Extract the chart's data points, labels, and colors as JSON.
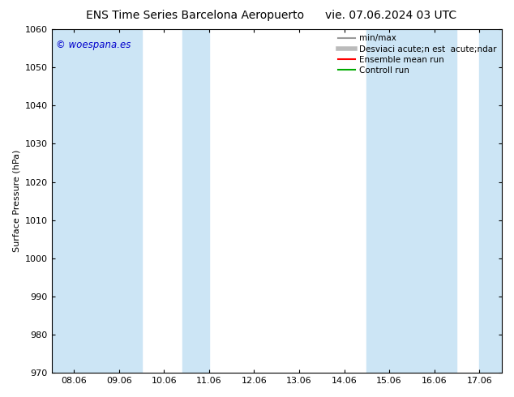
{
  "title_left": "ENS Time Series Barcelona Aeropuerto",
  "title_right": "vie. 07.06.2024 03 UTC",
  "ylabel": "Surface Pressure (hPa)",
  "ylim": [
    970,
    1060
  ],
  "yticks": [
    970,
    980,
    990,
    1000,
    1010,
    1020,
    1030,
    1040,
    1050,
    1060
  ],
  "xtick_labels": [
    "08.06",
    "09.06",
    "10.06",
    "11.06",
    "12.06",
    "13.06",
    "14.06",
    "15.06",
    "16.06",
    "17.06"
  ],
  "xtick_positions": [
    0,
    1,
    2,
    3,
    4,
    5,
    6,
    7,
    8,
    9
  ],
  "xlim": [
    -0.5,
    9.5
  ],
  "shaded_bands": [
    {
      "x_start": -0.5,
      "x_end": 1.5,
      "color": "#d6e8f7"
    },
    {
      "x_start": 2.5,
      "x_end": 3.5,
      "color": "#d6e8f7"
    },
    {
      "x_start": 7.0,
      "x_end": 8.5,
      "color": "#d6e8f7"
    },
    {
      "x_start": 9.0,
      "x_end": 9.5,
      "color": "#d6e8f7"
    }
  ],
  "watermark_text": "© woespana.es",
  "watermark_color": "#0000cc",
  "background_color": "#ffffff",
  "plot_bg_color": "#ffffff",
  "legend_entries": [
    {
      "label": "min/max",
      "color": "#999999",
      "lw": 1.5,
      "style": "-"
    },
    {
      "label": "Desviaci acute;n est  acute;ndar",
      "color": "#bbbbbb",
      "lw": 4,
      "style": "-"
    },
    {
      "label": "Ensemble mean run",
      "color": "#ff0000",
      "lw": 1.5,
      "style": "-"
    },
    {
      "label": "Controll run",
      "color": "#00aa00",
      "lw": 1.5,
      "style": "-"
    }
  ],
  "title_fontsize": 10,
  "tick_fontsize": 8,
  "ylabel_fontsize": 8,
  "legend_fontsize": 7.5
}
